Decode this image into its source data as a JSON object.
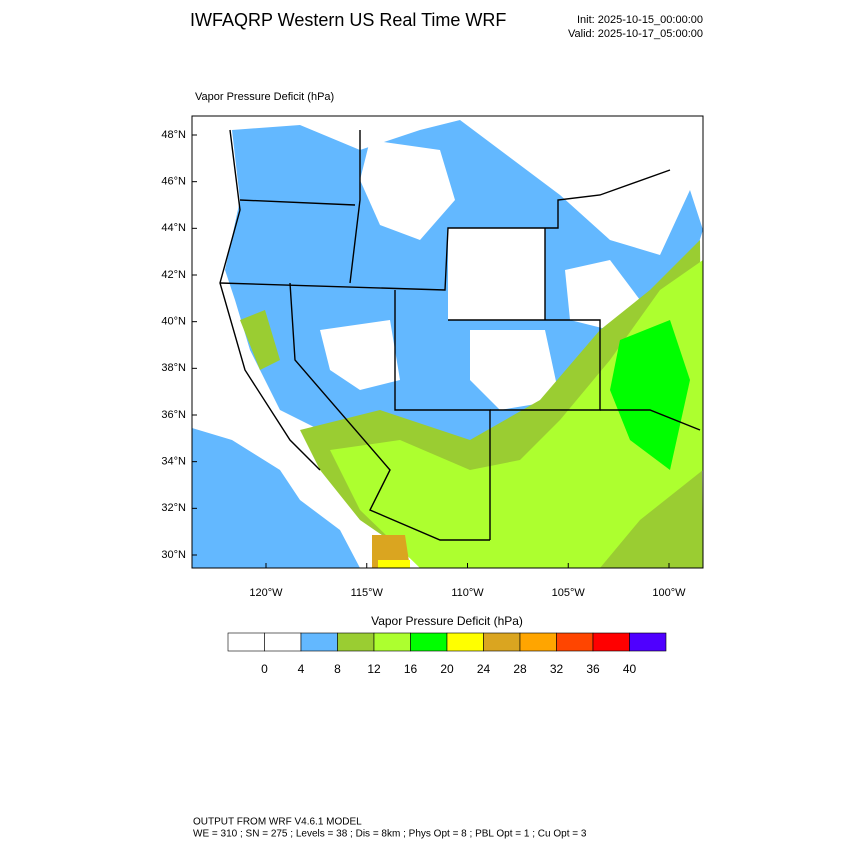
{
  "header": {
    "title": "IWFAQRP Western US Real Time WRF",
    "init": "Init: 2025-10-15_00:00:00",
    "valid": "Valid: 2025-10-17_05:00:00"
  },
  "map": {
    "field_label": "Vapor Pressure Deficit   (hPa)",
    "lat_labels": [
      "48°N",
      "46°N",
      "44°N",
      "42°N",
      "40°N",
      "38°N",
      "36°N",
      "34°N",
      "32°N",
      "30°N"
    ],
    "lon_labels": [
      "120°W",
      "115°W",
      "110°W",
      "105°W",
      "100°W"
    ]
  },
  "colorbar": {
    "title": "Vapor Pressure Deficit  (hPa)",
    "colors": [
      "#ffffff",
      "#ffffff",
      "#63b8ff",
      "#9acd32",
      "#adff2f",
      "#00ff00",
      "#ffff00",
      "#daa520",
      "#ffa500",
      "#ff4500",
      "#ff0000",
      "#4f00ff"
    ],
    "levels": [
      0,
      4,
      8,
      12,
      16,
      20,
      24,
      28,
      32,
      36,
      40
    ]
  },
  "footer": {
    "line1": "OUTPUT FROM WRF V4.6.1 MODEL",
    "line2": "WE = 310 ; SN = 275 ; Levels = 38 ; Dis = 8km ; Phys Opt = 8 ; PBL Opt = 1 ; Cu Opt = 3"
  }
}
